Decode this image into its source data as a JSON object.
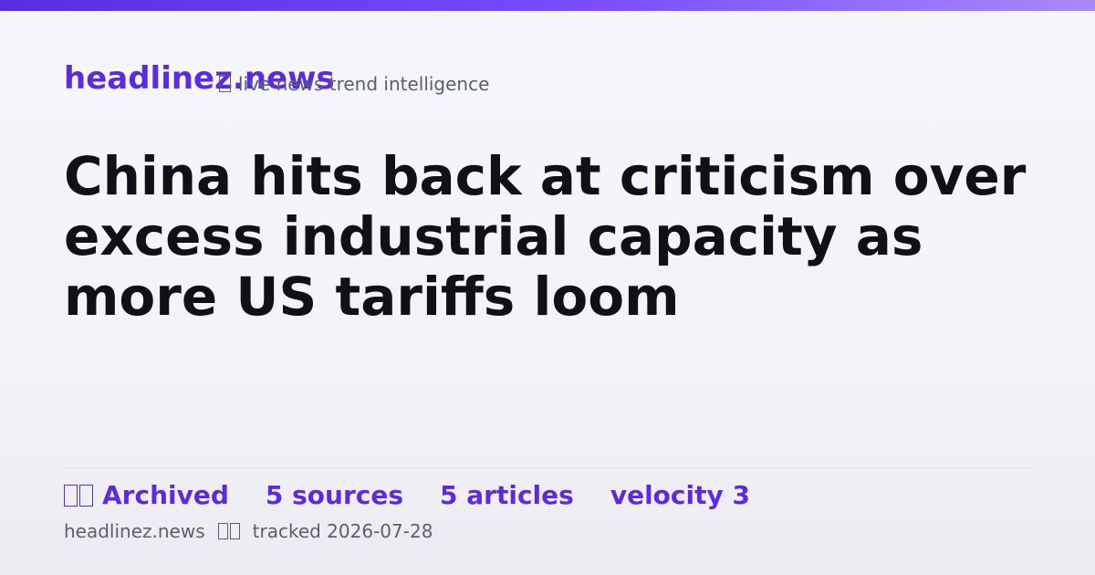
{
  "header": {
    "brand": "headlinez.news",
    "tagline": "live news trend intelligence"
  },
  "headline": "China hits back at criticism over excess industrial capacity as more US tariffs loom",
  "stats": [
    "Archived",
    "5 sources",
    "5 articles",
    "velocity 3"
  ],
  "footer": {
    "site": "headlinez.news",
    "tracked": "tracked 2026-07-28"
  }
}
